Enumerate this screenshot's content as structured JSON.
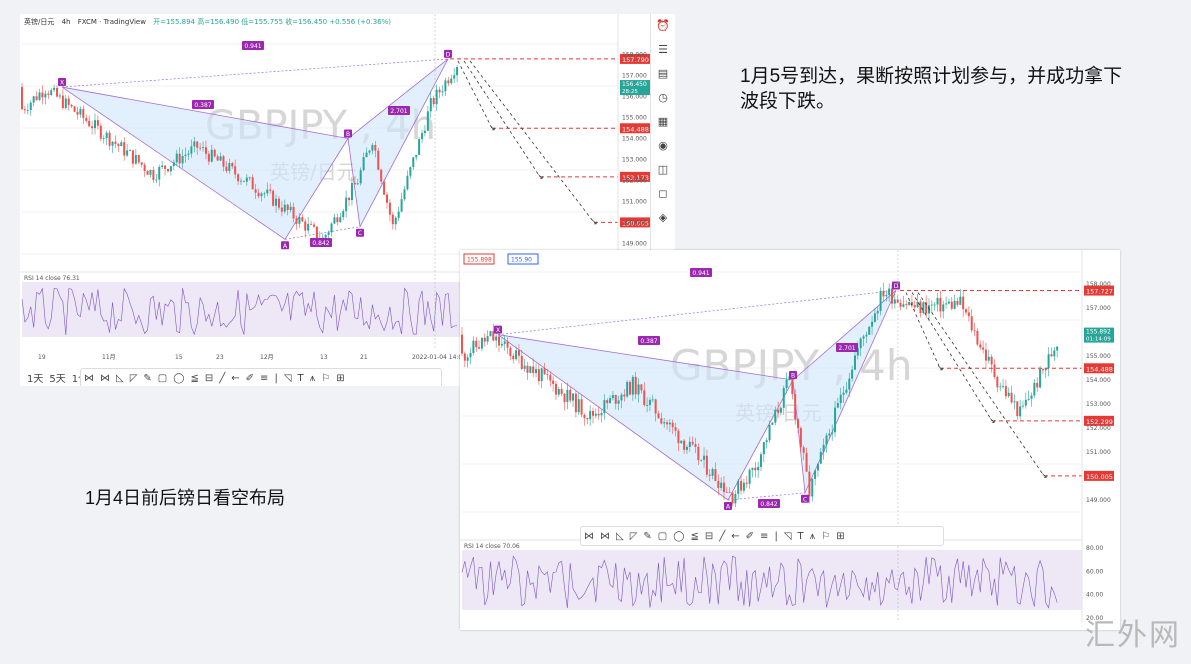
{
  "notes": {
    "top": "1月5号到达，果断按照计划参与，并成功拿下波段下跌。",
    "bottom": "1月4日前后镑日看空布局"
  },
  "watermark": "汇外网",
  "colors": {
    "up": "#26a69a",
    "down": "#ef5350",
    "pattern_fill": "#cfe4fb",
    "pattern_line": "#a46bd6",
    "label_bg": "#9c27b0",
    "target": "#e53935",
    "rsi": "#7e57c2"
  },
  "chart1": {
    "header": {
      "symbol": "英镑/日元",
      "interval": "4h",
      "source": "FXCM · TradingView",
      "ohlc": "开=155.894 高=156.490 低=155.755 收=156.450 +0.556 (+0.36%)"
    },
    "currency": "JPY",
    "watermark_main": "GBPJPY , 4h",
    "watermark_sub": "英镑/日元",
    "chart_data": {
      "type": "candlestick",
      "ylim": [
        148.5,
        158.5
      ],
      "price_axis": [
        "158.000",
        "157.000",
        "156.000",
        "155.000",
        "154.000",
        "153.000",
        "152.000",
        "151.000",
        "150.000",
        "149.000"
      ],
      "x_ticks": [
        "19",
        "11月",
        "15",
        "23",
        "12月",
        "13",
        "21",
        "2022-01-04 14:00"
      ],
      "pattern_points": [
        {
          "label": "X",
          "price": 156.45
        },
        {
          "label": "A",
          "price": 149.2
        },
        {
          "label": "B",
          "price": 154.0
        },
        {
          "label": "C",
          "price": 149.8
        },
        {
          "label": "D",
          "price": 157.79
        }
      ],
      "ratios": [
        "0.941",
        "0.387",
        "0.842",
        "2.701"
      ],
      "targets": [
        "157.790",
        "154.488",
        "152.173",
        "150.005"
      ],
      "last_price": "156.450",
      "last_time": "28:25",
      "rsi_label": "RSI 14 close 76.31"
    },
    "toolbar": [
      "1天",
      "5天",
      "1个"
    ]
  },
  "chart2": {
    "watermark_main": "GBPJPY , 4h",
    "watermark_sub": "英镑/日元",
    "chart_data": {
      "type": "candlestick",
      "ylim": [
        148.5,
        158.5
      ],
      "price_axis": [
        "158.000",
        "157.000",
        "155.000",
        "154.000",
        "153.000",
        "152.000",
        "151.000",
        "149.000"
      ],
      "pattern_points": [
        {
          "label": "X",
          "price": 155.89
        },
        {
          "label": "A",
          "price": 149.0
        },
        {
          "label": "B",
          "price": 154.0
        },
        {
          "label": "C",
          "price": 149.3
        },
        {
          "label": "D",
          "price": 157.73
        }
      ],
      "ratios": [
        "0.941",
        "0.387",
        "0.842",
        "2.701"
      ],
      "targets": [
        "157.727",
        "154.488",
        "152.299",
        "150.005"
      ],
      "price_labels": [
        "155.898",
        "155.90"
      ],
      "last_price": "155.892",
      "last_time": "01:14:09",
      "rsi_label": "RSI 14 close 70.06",
      "rsi_axis": [
        "80.00",
        "60.00",
        "40.00",
        "20.00"
      ]
    }
  }
}
